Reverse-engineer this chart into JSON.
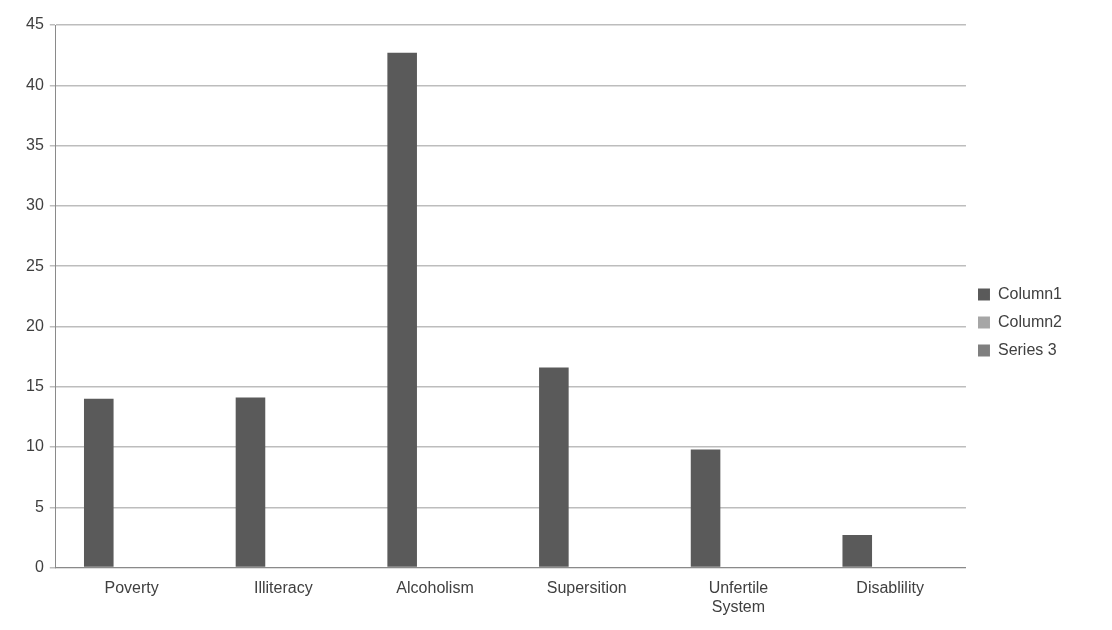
{
  "chart_data": {
    "type": "bar",
    "categories": [
      "Poverty",
      "Illiteracy",
      "Alcoholism",
      "Supersition",
      "Unfertile System",
      "Disablility"
    ],
    "series": [
      {
        "name": "Column1",
        "color": "#5a5a5a",
        "values": [
          14,
          14.1,
          42.7,
          16.6,
          9.8,
          2.7
        ]
      },
      {
        "name": "Column2",
        "color": "#a6a6a6",
        "values": [
          null,
          null,
          null,
          null,
          null,
          null
        ]
      },
      {
        "name": "Series 3",
        "color": "#7f7f7f",
        "values": [
          null,
          null,
          null,
          null,
          null,
          null
        ]
      }
    ],
    "ylim": [
      0,
      45
    ],
    "yticks": [
      0,
      5,
      10,
      15,
      20,
      25,
      30,
      35,
      40,
      45
    ],
    "grid": "y",
    "legend": "right"
  }
}
